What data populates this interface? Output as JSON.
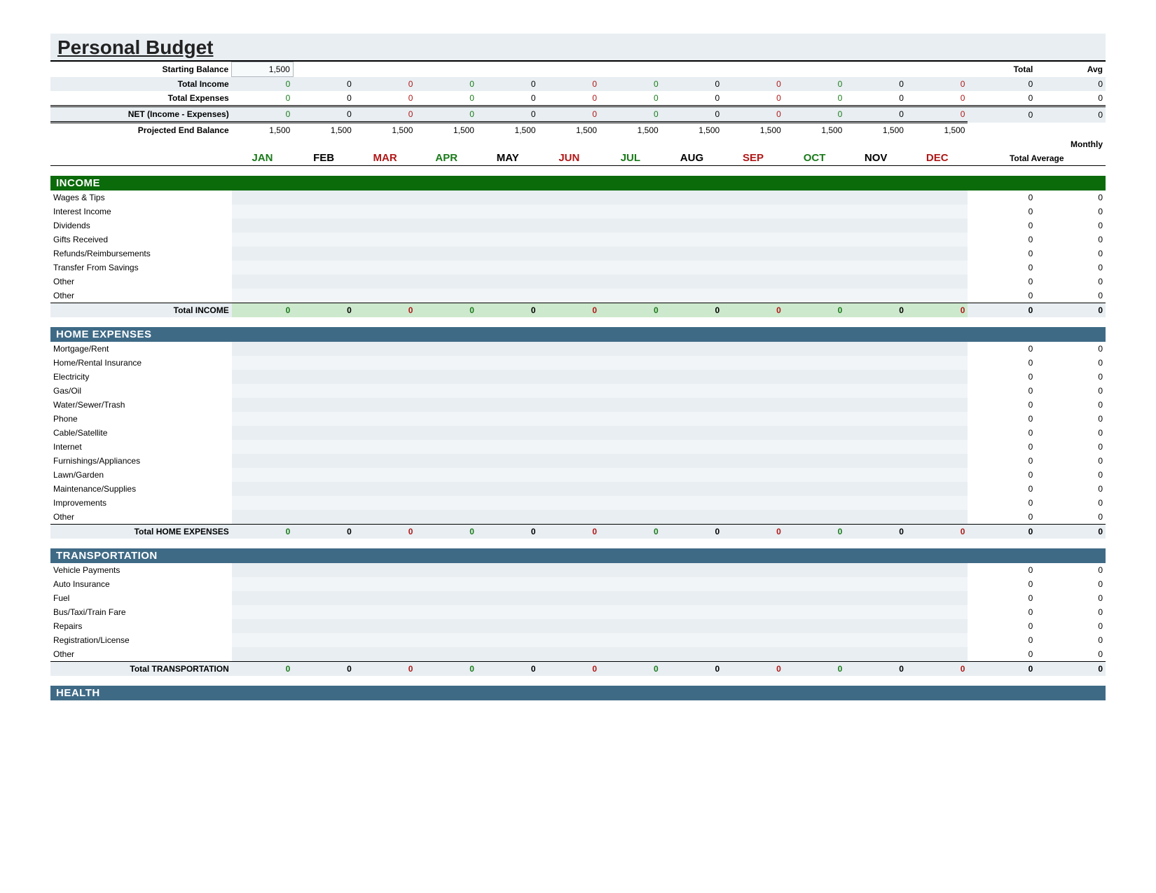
{
  "title": "Personal Budget",
  "months": [
    "JAN",
    "FEB",
    "MAR",
    "APR",
    "MAY",
    "JUN",
    "JUL",
    "AUG",
    "SEP",
    "OCT",
    "NOV",
    "DEC"
  ],
  "month_colors": [
    "#1a7a1a",
    "#000000",
    "#b01717",
    "#1a7a1a",
    "#000000",
    "#b01717",
    "#1a7a1a",
    "#000000",
    "#b01717",
    "#1a7a1a",
    "#000000",
    "#b01717"
  ],
  "summary": {
    "starting_balance_label": "Starting Balance",
    "starting_balance": "1,500",
    "total_label": "Total",
    "avg_label": "Avg",
    "monthly_label": "Monthly",
    "total_average_label": "Total Average",
    "rows": [
      {
        "label": "Total Income",
        "values": [
          "0",
          "0",
          "0",
          "0",
          "0",
          "0",
          "0",
          "0",
          "0",
          "0",
          "0",
          "0"
        ],
        "total": "0",
        "avg": "0",
        "shade": true
      },
      {
        "label": "Total Expenses",
        "values": [
          "0",
          "0",
          "0",
          "0",
          "0",
          "0",
          "0",
          "0",
          "0",
          "0",
          "0",
          "0"
        ],
        "total": "0",
        "avg": "0",
        "shade": false
      },
      {
        "label": "NET (Income - Expenses)",
        "values": [
          "0",
          "0",
          "0",
          "0",
          "0",
          "0",
          "0",
          "0",
          "0",
          "0",
          "0",
          "0"
        ],
        "total": "0",
        "avg": "0",
        "shade": true,
        "double_border": true
      },
      {
        "label": "Projected End Balance",
        "values": [
          "1,500",
          "1,500",
          "1,500",
          "1,500",
          "1,500",
          "1,500",
          "1,500",
          "1,500",
          "1,500",
          "1,500",
          "1,500",
          "1,500"
        ],
        "total": "",
        "avg": "",
        "shade": false,
        "mono": true
      }
    ]
  },
  "zero_values": [
    "0",
    "0",
    "0",
    "0",
    "0",
    "0",
    "0",
    "0",
    "0",
    "0",
    "0",
    "0"
  ],
  "sections": [
    {
      "name": "INCOME",
      "header_bg": "#0b6b0b",
      "total_bg": "income",
      "lines": [
        "Wages & Tips",
        "Interest Income",
        "Dividends",
        "Gifts Received",
        "Refunds/Reimbursements",
        "Transfer From Savings",
        "Other",
        "Other"
      ],
      "total_label": "Total INCOME"
    },
    {
      "name": "HOME EXPENSES",
      "header_bg": "#3f6a86",
      "total_bg": "gray",
      "lines": [
        "Mortgage/Rent",
        "Home/Rental Insurance",
        "Electricity",
        "Gas/Oil",
        "Water/Sewer/Trash",
        "Phone",
        "Cable/Satellite",
        "Internet",
        "Furnishings/Appliances",
        "Lawn/Garden",
        "Maintenance/Supplies",
        "Improvements",
        "Other"
      ],
      "total_label": "Total HOME EXPENSES"
    },
    {
      "name": "TRANSPORTATION",
      "header_bg": "#3f6a86",
      "total_bg": "gray",
      "lines": [
        "Vehicle Payments",
        "Auto Insurance",
        "Fuel",
        "Bus/Taxi/Train Fare",
        "Repairs",
        "Registration/License",
        "Other"
      ],
      "total_label": "Total TRANSPORTATION"
    },
    {
      "name": "HEALTH",
      "header_bg": "#3f6a86",
      "total_bg": "gray",
      "lines": [],
      "total_label": ""
    }
  ],
  "colors": {
    "green": "#1a7a1a",
    "red": "#b01717",
    "black": "#000000",
    "shade": "#e8eef2",
    "income_header": "#0b6b0b",
    "expense_header": "#3f6a86",
    "income_total_bg": "#cde9cd"
  }
}
